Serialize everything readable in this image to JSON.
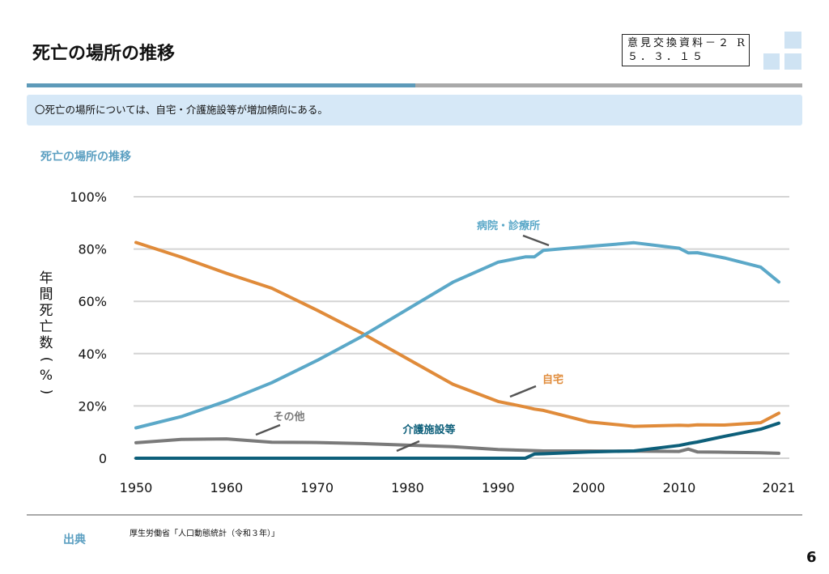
{
  "header": {
    "title": "死亡の場所の推移",
    "doc_ref_line1": "意見交換資料－２ R",
    "doc_ref_line2": "５．３．１５"
  },
  "banner": {
    "text": "〇死亡の場所については、自宅・介護施設等が増加傾向にある。"
  },
  "section": {
    "subtitle": "死亡の場所の推移"
  },
  "chart_data": {
    "type": "line",
    "title": "",
    "ylabel": "年間死亡数(%)",
    "xlabel": "",
    "xlim": [
      1950,
      2021
    ],
    "ylim": [
      0,
      100
    ],
    "x_ticks": [
      "1950",
      "1960",
      "1970",
      "1980",
      "1990",
      "2000",
      "2010",
      "2021"
    ],
    "y_ticks": [
      "0",
      "20%",
      "40%",
      "60%",
      "80%",
      "100%"
    ],
    "grid": true,
    "x": [
      1950,
      1955,
      1960,
      1965,
      1970,
      1975,
      1980,
      1985,
      1990,
      1993,
      1994,
      1995,
      2000,
      2005,
      2010,
      2011,
      2012,
      2015,
      2019,
      2021
    ],
    "series": [
      {
        "name": "病院・診療所",
        "color": "#5ba8c8",
        "values": [
          11.6,
          15.9,
          21.9,
          28.9,
          37.4,
          46.7,
          57.0,
          67.3,
          75.0,
          77.0,
          77.0,
          79.5,
          81.0,
          82.4,
          80.3,
          78.5,
          78.6,
          76.6,
          73.1,
          67.4
        ]
      },
      {
        "name": "自宅",
        "color": "#e08b3a",
        "values": [
          82.5,
          76.9,
          70.7,
          65.0,
          56.6,
          47.7,
          38.0,
          28.3,
          21.7,
          19.6,
          18.8,
          18.3,
          13.9,
          12.2,
          12.6,
          12.5,
          12.8,
          12.7,
          13.6,
          17.2
        ]
      },
      {
        "name": "その他",
        "color": "#7a7a7a",
        "values": [
          5.9,
          7.2,
          7.4,
          6.1,
          6.0,
          5.6,
          5.0,
          4.4,
          3.3,
          3.0,
          2.9,
          2.8,
          2.8,
          2.7,
          2.6,
          3.5,
          2.4,
          2.3,
          2.1,
          1.9
        ]
      },
      {
        "name": "介護施設等",
        "color": "#0d5f7a",
        "values": [
          0,
          0,
          0,
          0,
          0,
          0,
          0,
          0,
          0,
          0,
          1.6,
          1.7,
          2.4,
          2.8,
          4.9,
          5.6,
          6.2,
          8.4,
          11.1,
          13.4
        ]
      }
    ],
    "annotations": [
      {
        "text": "病院・診療所",
        "series": 0
      },
      {
        "text": "自宅",
        "series": 1
      },
      {
        "text": "その他",
        "series": 2
      },
      {
        "text": "介護施設等",
        "series": 3
      }
    ]
  },
  "footer": {
    "source_label": "出典",
    "source_text": "厚生労働省「人口動態統計（令和３年）」",
    "page_number": "6"
  }
}
